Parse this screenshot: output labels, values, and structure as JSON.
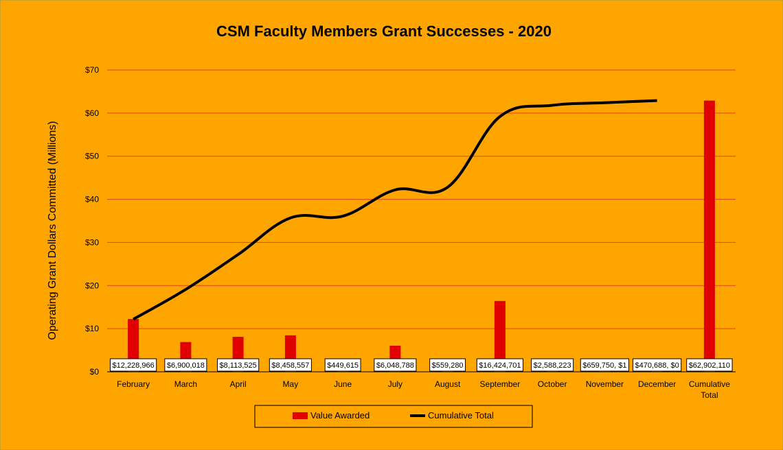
{
  "chart_data": {
    "type": "bar+line",
    "title": "CSM Faculty Members Grant Successes - 2020",
    "ylabel": "Operating Grant Dollars Committed (Millions)",
    "xlabel": "",
    "ylim": [
      0,
      70
    ],
    "y_ticks": [
      0,
      10,
      20,
      30,
      40,
      50,
      60,
      70
    ],
    "y_tick_labels": [
      "$0",
      "$10",
      "$20",
      "$30",
      "$40",
      "$50",
      "$60",
      "$70"
    ],
    "categories": [
      "February",
      "March",
      "April",
      "May",
      "June",
      "July",
      "August",
      "September",
      "October",
      "November",
      "December",
      "Cumulative Total"
    ],
    "category_lines": [
      [
        "February"
      ],
      [
        "March"
      ],
      [
        "April"
      ],
      [
        "May"
      ],
      [
        "June"
      ],
      [
        "July"
      ],
      [
        "August"
      ],
      [
        "September"
      ],
      [
        "October"
      ],
      [
        "November"
      ],
      [
        "December"
      ],
      [
        "Cumulative",
        "Total"
      ]
    ],
    "grid": true,
    "legend_position": "bottom",
    "series": [
      {
        "name": "Value Awarded",
        "kind": "bar",
        "color": "#E00000",
        "values": [
          12.228966,
          6.900018,
          8.113525,
          8.458557,
          0.449615,
          6.048788,
          0.55928,
          16.424701,
          2.588223,
          0.65975,
          0.470688,
          62.90211
        ],
        "data_labels": [
          "$12,228,966",
          "$6,900,018",
          "$8,113,525",
          "$8,458,557",
          "$449,615",
          "$6,048,788",
          "$559,280",
          "$16,424,701",
          "$2,588,223",
          "$659,750, $1",
          "$470,688, $0",
          "$62,902,110"
        ]
      },
      {
        "name": "Cumulative Total",
        "kind": "line",
        "color": "#000000",
        "values": [
          12.2,
          19.1,
          27.2,
          35.7,
          36.1,
          42.2,
          42.8,
          59.2,
          61.8,
          62.4,
          62.9,
          null
        ]
      }
    ],
    "colors": {
      "background": "#FFA500",
      "gridline": "#E0441A",
      "axis": "#000000",
      "label_box_fill": "#FFFFFF",
      "legend_border": "#000000"
    }
  }
}
